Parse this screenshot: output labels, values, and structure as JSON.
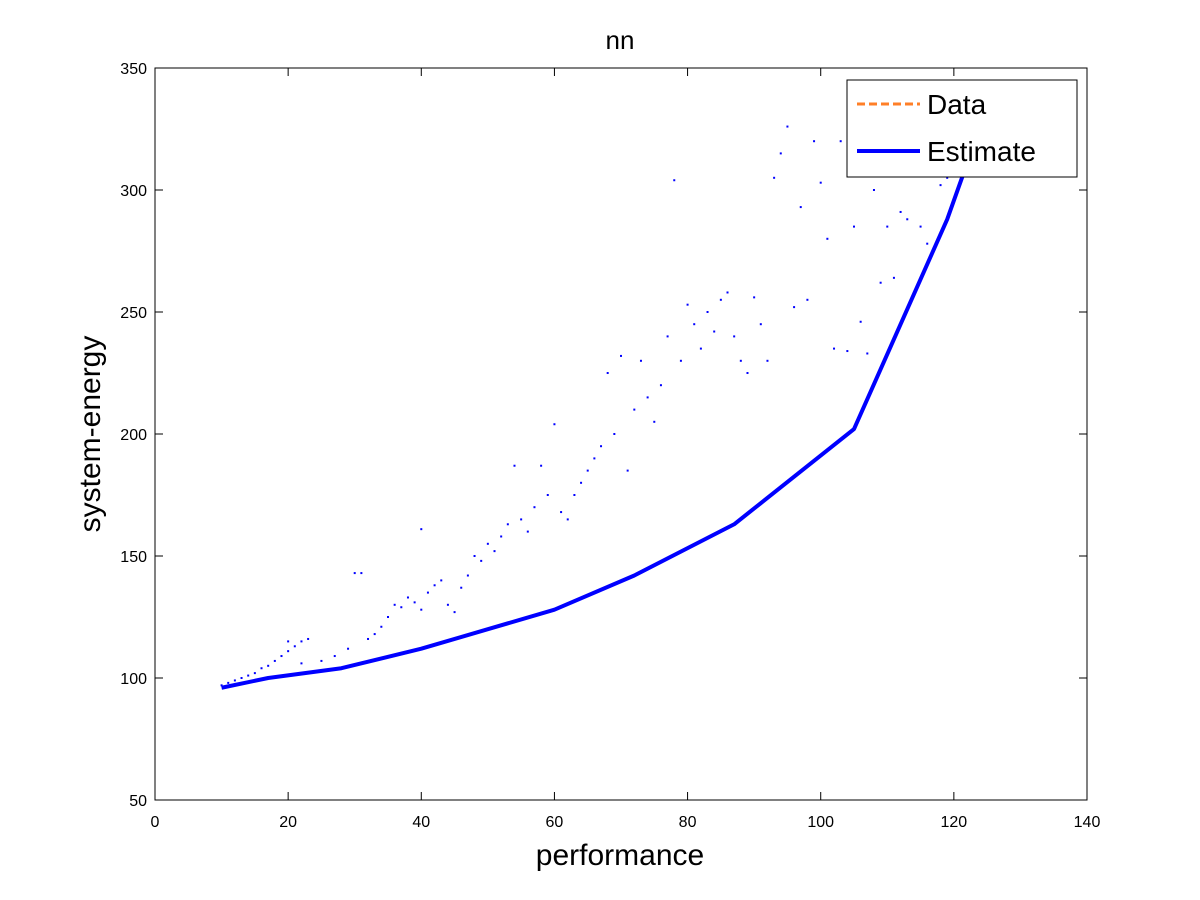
{
  "chart_data": {
    "type": "scatter",
    "title": "nn",
    "xlabel": "performance",
    "ylabel": "system-energy",
    "xlim": [
      0,
      140
    ],
    "ylim": [
      50,
      350
    ],
    "xticks": [
      0,
      20,
      40,
      60,
      80,
      100,
      120,
      140
    ],
    "yticks": [
      50,
      100,
      150,
      200,
      250,
      300,
      350
    ],
    "grid": false,
    "legend_position": "top-right",
    "series": [
      {
        "name": "Data",
        "kind": "scatter",
        "color": "#0000ff",
        "legend_color": "#ff7f27",
        "legend_style": "dashed",
        "points": [
          [
            10,
            97
          ],
          [
            11,
            98
          ],
          [
            12,
            99
          ],
          [
            13,
            100
          ],
          [
            14,
            101
          ],
          [
            15,
            102
          ],
          [
            16,
            104
          ],
          [
            17,
            105
          ],
          [
            18,
            107
          ],
          [
            19,
            109
          ],
          [
            20,
            111
          ],
          [
            21,
            113
          ],
          [
            22,
            115
          ],
          [
            23,
            116
          ],
          [
            20,
            115
          ],
          [
            22,
            106
          ],
          [
            25,
            107
          ],
          [
            27,
            109
          ],
          [
            29,
            112
          ],
          [
            30,
            143
          ],
          [
            31,
            143
          ],
          [
            32,
            116
          ],
          [
            33,
            118
          ],
          [
            34,
            121
          ],
          [
            35,
            125
          ],
          [
            36,
            130
          ],
          [
            37,
            129
          ],
          [
            38,
            133
          ],
          [
            39,
            131
          ],
          [
            40,
            161
          ],
          [
            40,
            128
          ],
          [
            41,
            135
          ],
          [
            42,
            138
          ],
          [
            43,
            140
          ],
          [
            44,
            130
          ],
          [
            45,
            127
          ],
          [
            46,
            137
          ],
          [
            47,
            142
          ],
          [
            48,
            150
          ],
          [
            49,
            148
          ],
          [
            50,
            155
          ],
          [
            51,
            152
          ],
          [
            52,
            158
          ],
          [
            53,
            163
          ],
          [
            54,
            187
          ],
          [
            55,
            165
          ],
          [
            56,
            160
          ],
          [
            57,
            170
          ],
          [
            58,
            187
          ],
          [
            59,
            175
          ],
          [
            60,
            204
          ],
          [
            61,
            168
          ],
          [
            62,
            165
          ],
          [
            63,
            175
          ],
          [
            64,
            180
          ],
          [
            65,
            185
          ],
          [
            66,
            190
          ],
          [
            67,
            195
          ],
          [
            68,
            225
          ],
          [
            69,
            200
          ],
          [
            70,
            232
          ],
          [
            71,
            185
          ],
          [
            72,
            210
          ],
          [
            73,
            230
          ],
          [
            74,
            215
          ],
          [
            75,
            205
          ],
          [
            76,
            220
          ],
          [
            77,
            240
          ],
          [
            78,
            304
          ],
          [
            79,
            230
          ],
          [
            80,
            253
          ],
          [
            81,
            245
          ],
          [
            82,
            235
          ],
          [
            83,
            250
          ],
          [
            84,
            242
          ],
          [
            85,
            255
          ],
          [
            86,
            258
          ],
          [
            87,
            240
          ],
          [
            88,
            230
          ],
          [
            89,
            225
          ],
          [
            90,
            256
          ],
          [
            91,
            245
          ],
          [
            92,
            230
          ],
          [
            93,
            305
          ],
          [
            94,
            315
          ],
          [
            95,
            326
          ],
          [
            96,
            252
          ],
          [
            97,
            293
          ],
          [
            98,
            255
          ],
          [
            99,
            320
          ],
          [
            100,
            303
          ],
          [
            101,
            280
          ],
          [
            102,
            235
          ],
          [
            103,
            320
          ],
          [
            104,
            234
          ],
          [
            105,
            285
          ],
          [
            106,
            246
          ],
          [
            107,
            233
          ],
          [
            108,
            300
          ],
          [
            109,
            262
          ],
          [
            110,
            285
          ],
          [
            111,
            264
          ],
          [
            112,
            291
          ],
          [
            113,
            288
          ],
          [
            114,
            320
          ],
          [
            115,
            285
          ],
          [
            116,
            278
          ],
          [
            117,
            310
          ],
          [
            118,
            302
          ],
          [
            119,
            305
          ]
        ]
      },
      {
        "name": "Estimate",
        "kind": "line",
        "color": "#0000ff",
        "x": [
          10,
          17,
          28,
          40,
          50,
          60,
          72,
          87,
          105,
          119,
          122
        ],
        "y": [
          96,
          100,
          104,
          112,
          120,
          128,
          142,
          163,
          202,
          288,
          311
        ]
      }
    ]
  }
}
